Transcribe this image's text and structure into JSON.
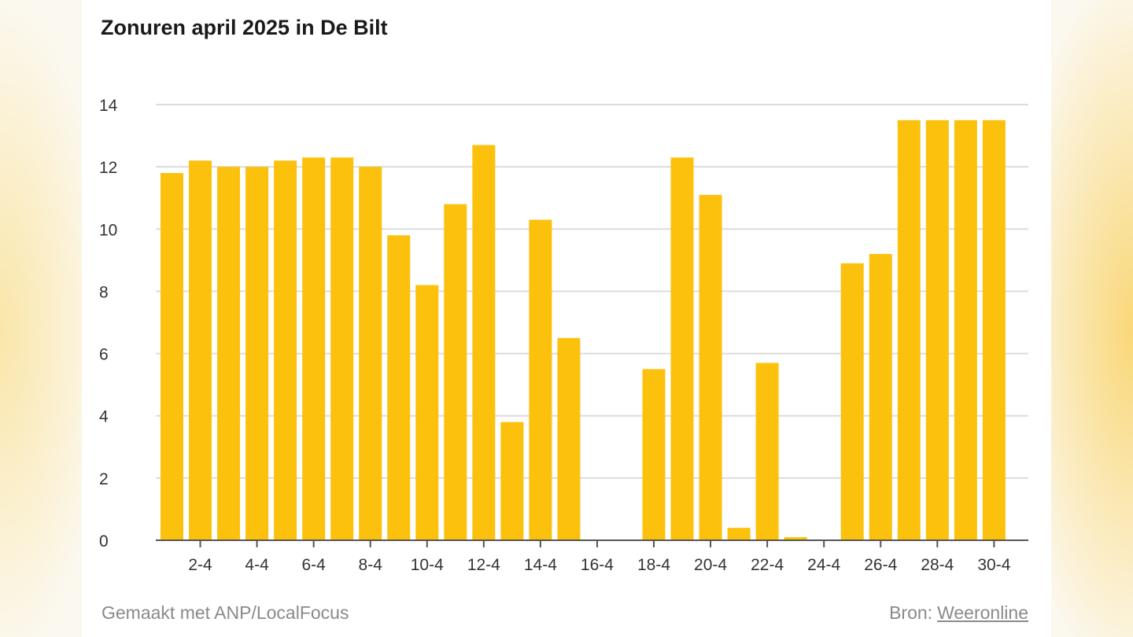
{
  "chart_data": {
    "type": "bar",
    "title": "Zonuren april 2025 in De Bilt",
    "xlabel": "",
    "ylabel": "",
    "ylim": [
      0,
      14
    ],
    "yticks": [
      0,
      2,
      4,
      6,
      8,
      10,
      12,
      14
    ],
    "grid": true,
    "bar_color": "#fcc10c",
    "categories": [
      "1-4",
      "2-4",
      "3-4",
      "4-4",
      "5-4",
      "6-4",
      "7-4",
      "8-4",
      "9-4",
      "10-4",
      "11-4",
      "12-4",
      "13-4",
      "14-4",
      "15-4",
      "16-4",
      "17-4",
      "18-4",
      "19-4",
      "20-4",
      "21-4",
      "22-4",
      "23-4",
      "24-4",
      "25-4",
      "26-4",
      "27-4",
      "28-4",
      "29-4",
      "30-4"
    ],
    "xtick_labels": [
      "2-4",
      "4-4",
      "6-4",
      "8-4",
      "10-4",
      "12-4",
      "14-4",
      "16-4",
      "18-4",
      "20-4",
      "22-4",
      "24-4",
      "26-4",
      "28-4",
      "30-4"
    ],
    "values": [
      11.8,
      12.2,
      12.0,
      12.0,
      12.2,
      12.3,
      12.3,
      12.0,
      9.8,
      8.2,
      10.8,
      12.7,
      3.8,
      10.3,
      6.5,
      0,
      0,
      5.5,
      12.3,
      11.1,
      0.4,
      5.7,
      0.1,
      0,
      8.9,
      9.2,
      13.5,
      13.5,
      13.5,
      13.5
    ]
  },
  "footer": {
    "made_with": "Gemaakt met ANP/LocalFocus",
    "source_label": "Bron:",
    "source_link": "Weeronline"
  }
}
